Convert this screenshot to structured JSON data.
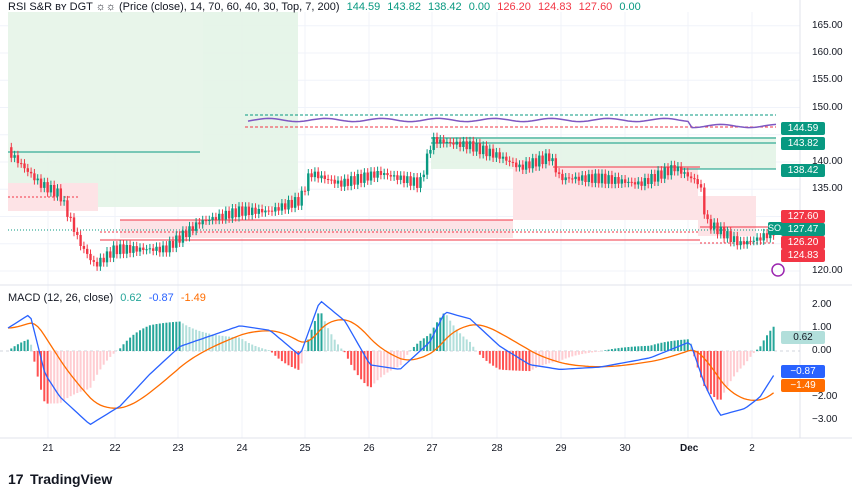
{
  "rsi_legend": {
    "title": "RSI S&R ʙʏ DGT ☼☼ (Price (close), 14, 70, 60, 40, 30, Top, 7, 200)",
    "values": [
      "144.59",
      "143.82",
      "138.42",
      "0.00",
      "126.20",
      "124.83",
      "127.60",
      "0.00"
    ]
  },
  "macd_legend": {
    "title": "MACD (12, 26, close)",
    "values": [
      "0.62",
      "-0.87",
      "-1.49"
    ]
  },
  "price_axis": {
    "ticks": [
      "165.00",
      "160.00",
      "155.00",
      "150.00",
      "140.00",
      "135.00",
      "120.00"
    ],
    "labels": [
      {
        "text": "144.59",
        "color": "#089981"
      },
      {
        "text": "143.82",
        "color": "#089981"
      },
      {
        "text": "138.42",
        "color": "#089981"
      },
      {
        "text": "127.60",
        "color": "#f23645"
      },
      {
        "text": "127.47",
        "color": "#089981"
      },
      {
        "text": "126.20",
        "color": "#f23645"
      },
      {
        "text": "124.83",
        "color": "#f23645"
      }
    ],
    "symbol": "SOLUSD"
  },
  "macd_axis": {
    "ticks": [
      "2.00",
      "1.00",
      "0.00",
      "−2.00",
      "−3.00"
    ],
    "labels": [
      {
        "text": "0.62",
        "color": "#b2dfdb",
        "fg": "#131722"
      },
      {
        "text": "−0.87",
        "color": "#2962ff",
        "fg": "#ffffff"
      },
      {
        "text": "−1.49",
        "color": "#ff6d00",
        "fg": "#ffffff"
      }
    ]
  },
  "time_axis": [
    "21",
    "22",
    "23",
    "24",
    "25",
    "26",
    "27",
    "28",
    "29",
    "30",
    "Dec",
    "2"
  ],
  "brand": {
    "name": "TradingView",
    "mark": "17"
  },
  "colors": {
    "up": "#089981",
    "down": "#f23645",
    "macd": "#2962ff",
    "signal": "#ff6d00"
  }
}
